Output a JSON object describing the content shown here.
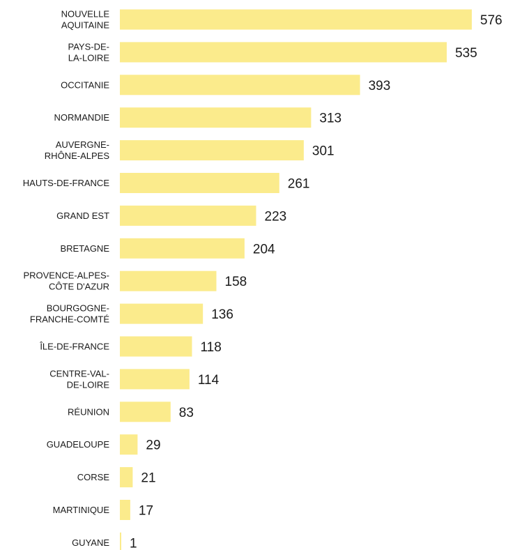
{
  "chart_data": {
    "type": "bar",
    "orientation": "horizontal",
    "categories": [
      "NOUVELLE AQUITAINE",
      "PAYS-DE-LA-LOIRE",
      "OCCITANIE",
      "NORMANDIE",
      "AUVERGNE-RHÔNE-ALPES",
      "HAUTS-DE-FRANCE",
      "GRAND EST",
      "BRETAGNE",
      "PROVENCE-ALPES-CÔTE D'AZUR",
      "BOURGOGNE-FRANCHE-COMTÉ",
      "ÎLE-DE-FRANCE",
      "CENTRE-VAL-DE-LOIRE",
      "RÉUNION",
      "GUADELOUPE",
      "CORSE",
      "MARTINIQUE",
      "GUYANE"
    ],
    "label_lines": [
      [
        "NOUVELLE",
        "AQUITAINE"
      ],
      [
        "PAYS-DE-",
        "LA-LOIRE"
      ],
      [
        "OCCITANIE"
      ],
      [
        "NORMANDIE"
      ],
      [
        "AUVERGNE-",
        "RHÔNE-ALPES"
      ],
      [
        "HAUTS-DE-FRANCE"
      ],
      [
        "GRAND EST"
      ],
      [
        "BRETAGNE"
      ],
      [
        "PROVENCE-ALPES-",
        "CÔTE D'AZUR"
      ],
      [
        "BOURGOGNE-",
        "FRANCHE-COMTÉ"
      ],
      [
        "ÎLE-DE-FRANCE"
      ],
      [
        "CENTRE-VAL-",
        "DE-LOIRE"
      ],
      [
        "RÉUNION"
      ],
      [
        "GUADELOUPE"
      ],
      [
        "CORSE"
      ],
      [
        "MARTINIQUE"
      ],
      [
        "GUYANE"
      ]
    ],
    "values": [
      576,
      535,
      393,
      313,
      301,
      261,
      223,
      204,
      158,
      136,
      118,
      114,
      83,
      29,
      21,
      17,
      1
    ],
    "xlim": [
      0,
      576
    ],
    "title": "",
    "xlabel": "",
    "ylabel": "",
    "grid": false,
    "legend": "none",
    "bar_color": "#fbeb8c",
    "text_color": "#1a1a1a"
  }
}
